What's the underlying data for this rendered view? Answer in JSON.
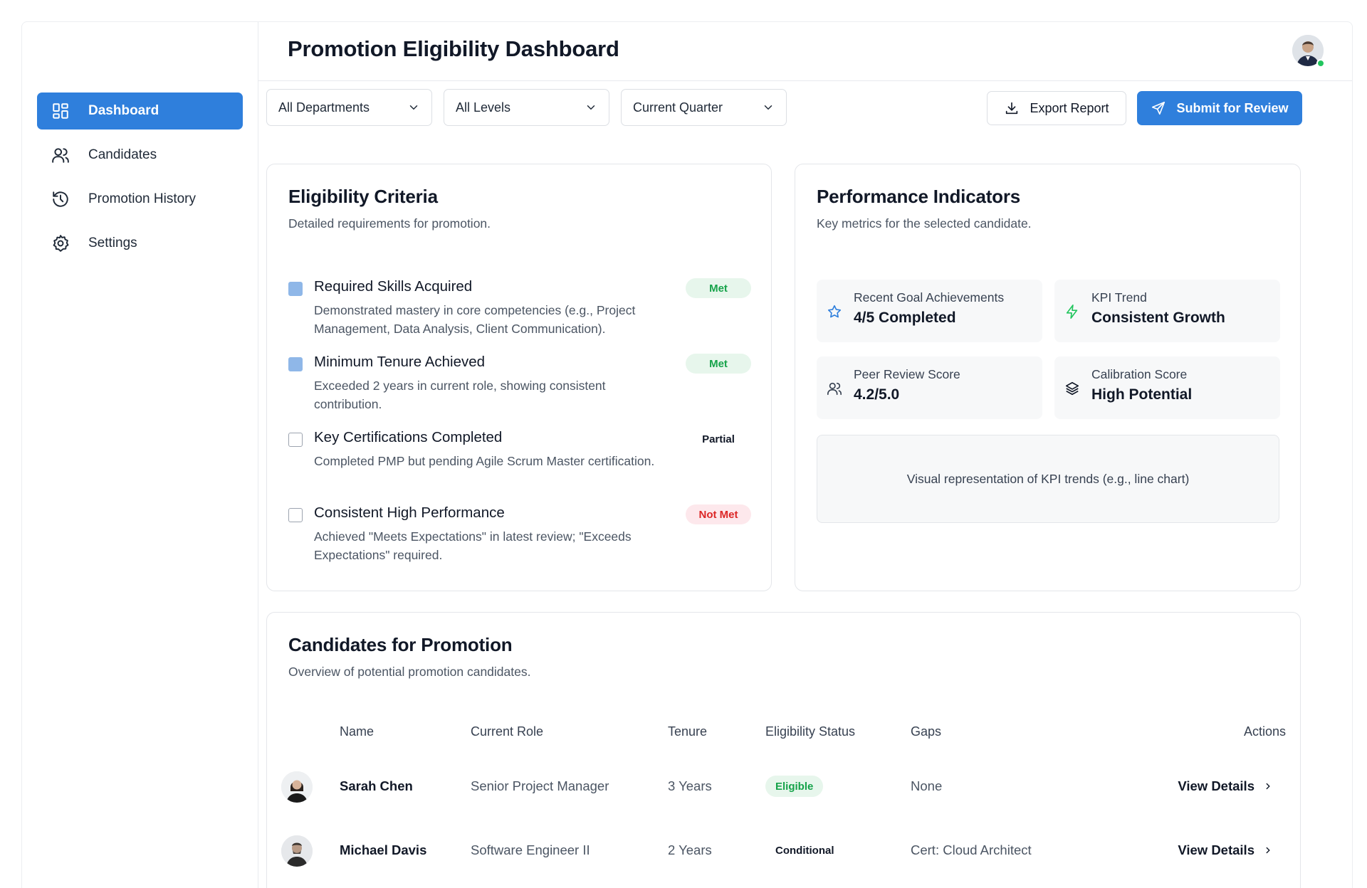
{
  "app": {
    "title": "Promotion Eligibility Dashboard"
  },
  "sidebar": {
    "items": [
      {
        "label": "Dashboard",
        "icon": "dashboard-icon",
        "active": true
      },
      {
        "label": "Candidates",
        "icon": "users-icon",
        "active": false
      },
      {
        "label": "Promotion History",
        "icon": "history-icon",
        "active": false
      },
      {
        "label": "Settings",
        "icon": "gear-icon",
        "active": false
      }
    ]
  },
  "filters": {
    "department": "All Departments",
    "level": "All Levels",
    "period": "Current Quarter"
  },
  "actions": {
    "export_label": "Export Report",
    "submit_label": "Submit for Review"
  },
  "eligibility": {
    "title": "Eligibility Criteria",
    "subtitle": "Detailed requirements for promotion.",
    "criteria": [
      {
        "title": "Required Skills Acquired",
        "desc": "Demonstrated mastery in core competencies (e.g., Project Management, Data Analysis, Client Communication).",
        "status": "Met",
        "checked": true
      },
      {
        "title": "Minimum Tenure Achieved",
        "desc": "Exceeded 2 years in current role, showing consistent contribution.",
        "status": "Met",
        "checked": true
      },
      {
        "title": "Key Certifications Completed",
        "desc": "Completed PMP but pending Agile Scrum Master certification.",
        "status": "Partial",
        "checked": false
      },
      {
        "title": "Consistent High Performance",
        "desc": "Achieved \"Meets Expectations\" in latest review; \"Exceeds Expectations\" required.",
        "status": "Not Met",
        "checked": false
      }
    ]
  },
  "performance": {
    "title": "Performance Indicators",
    "subtitle": "Key metrics for the selected candidate.",
    "metrics": [
      {
        "label": "Recent Goal Achievements",
        "value": "4/5 Completed",
        "icon": "star-icon"
      },
      {
        "label": "KPI Trend",
        "value": "Consistent Growth",
        "icon": "lightning-icon"
      },
      {
        "label": "Peer Review Score",
        "value": "4.2/5.0",
        "icon": "users-icon"
      },
      {
        "label": "Calibration Score",
        "value": "High Potential",
        "icon": "layers-icon"
      }
    ],
    "chart_placeholder": "Visual representation of KPI trends (e.g., line chart)"
  },
  "candidates": {
    "title": "Candidates for Promotion",
    "subtitle": "Overview of potential promotion candidates.",
    "columns": [
      "Name",
      "Current Role",
      "Tenure",
      "Eligibility Status",
      "Gaps",
      "Actions"
    ],
    "rows": [
      {
        "name": "Sarah Chen",
        "role": "Senior Project Manager",
        "tenure": "3 Years",
        "status": "Eligible",
        "gaps": "None",
        "action": "View Details"
      },
      {
        "name": "Michael Davis",
        "role": "Software Engineer II",
        "tenure": "2 Years",
        "status": "Conditional",
        "gaps": "Cert: Cloud Architect",
        "action": "View Details"
      }
    ]
  },
  "colors": {
    "accent": "#2f7fdc",
    "success": "#16a34a",
    "danger": "#dc2626",
    "online": "#22c55e"
  }
}
